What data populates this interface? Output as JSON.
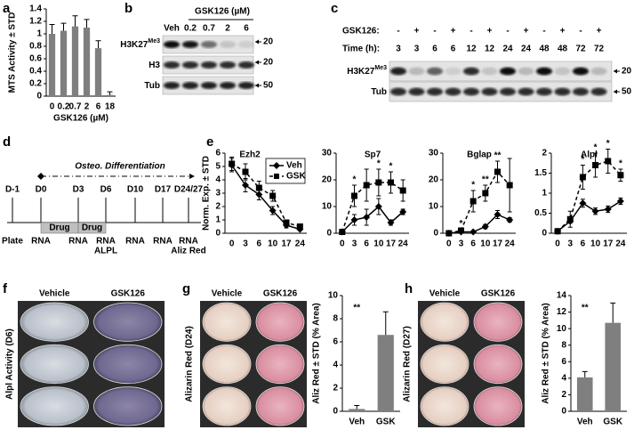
{
  "panel_labels": [
    "a",
    "b",
    "c",
    "d",
    "e",
    "f",
    "g",
    "h"
  ],
  "blot_b": {
    "treatment": "GSK126 (µM)",
    "lanes": [
      "Veh",
      "0.2",
      "0.7",
      "2",
      "6"
    ],
    "rows": [
      {
        "name": "H3K27",
        "sup": "Me3",
        "marker": "20"
      },
      {
        "name": "H3",
        "marker": "20"
      },
      {
        "name": "Tub",
        "marker": "50"
      }
    ]
  },
  "blot_c": {
    "treatment_label": "GSK126:",
    "treatment": [
      "-",
      "+",
      "-",
      "+",
      "-",
      "+",
      "-",
      "+",
      "-",
      "+",
      "-",
      "+"
    ],
    "time_label": "Time (h):",
    "times": [
      "3",
      "3",
      "6",
      "6",
      "12",
      "12",
      "24",
      "24",
      "48",
      "48",
      "72",
      "72"
    ],
    "rows": [
      {
        "name": "H3K27",
        "sup": "Me3",
        "marker": "20"
      },
      {
        "name": "Tub",
        "marker": "50"
      }
    ]
  },
  "timeline_d": {
    "phase": "Osteo. Differentiation",
    "days": [
      "D-1",
      "D0",
      "D3",
      "D6",
      "D10",
      "D17",
      "D24/27"
    ],
    "drug": [
      "Drug",
      "Drug"
    ],
    "events": [
      [
        "Plate"
      ],
      [
        "RNA"
      ],
      [
        "RNA"
      ],
      [
        "RNA",
        "ALPL"
      ],
      [
        "RNA"
      ],
      [
        "RNA"
      ],
      [
        "RNA",
        "Aliz Red"
      ]
    ]
  },
  "plates": [
    {
      "columns": [
        "Vehicle",
        "GSK126"
      ],
      "label": "Alpl Activity (D6)"
    },
    {
      "columns": [
        "Vehicle",
        "GSK126"
      ],
      "label": "Alizarin Red (D24)"
    },
    {
      "columns": [
        "Vehicle",
        "GSK126"
      ],
      "label": "Alizarin Red (D27)"
    }
  ],
  "chart_data": [
    {
      "type": "bar",
      "categories": [
        "0",
        "0.2",
        "0.7",
        "2",
        "6",
        "18"
      ],
      "values": [
        1.0,
        1.05,
        1.12,
        1.1,
        0.77,
        0.02
      ],
      "errors": [
        0.15,
        0.12,
        0.17,
        0.13,
        0.12,
        0.05
      ],
      "color": "#7f7f7f",
      "ylim": [
        0,
        1.4
      ],
      "yticks": [
        0,
        0.2,
        0.4,
        0.6,
        0.8,
        1,
        1.2,
        1.4
      ],
      "ylabel": "MTS Activity ± STD",
      "xlabel": "GSK126 (µM)"
    },
    {
      "type": "line",
      "title": "Ezh2",
      "categories": [
        "0",
        "3",
        "6",
        "10",
        "17",
        "24"
      ],
      "ylim": [
        0,
        6
      ],
      "yticks": [
        0,
        1,
        2,
        3,
        4,
        5,
        6
      ],
      "ylabel": "Norm. Exp. ± STD",
      "legend": "top-right",
      "series": [
        {
          "name": "Veh",
          "marker": "diamond",
          "dash": false,
          "values": [
            5.1,
            3.6,
            2.9,
            1.7,
            0.6,
            0.3
          ],
          "errors": [
            0.5,
            0.5,
            0.4,
            0.3,
            0.2,
            0.1
          ]
        },
        {
          "name": "GSK",
          "marker": "square",
          "dash": true,
          "values": [
            5.2,
            4.6,
            3.4,
            2.8,
            0.8,
            0.5
          ],
          "errors": [
            0.5,
            0.6,
            0.5,
            0.4,
            0.2,
            0.1
          ]
        }
      ]
    },
    {
      "type": "line",
      "title": "Sp7",
      "categories": [
        "0",
        "3",
        "6",
        "10",
        "17",
        "24"
      ],
      "ylim": [
        0,
        30
      ],
      "yticks": [
        0,
        10,
        20,
        30
      ],
      "significance": [
        null,
        "*",
        null,
        "*",
        "*",
        null
      ],
      "series": [
        {
          "marker": "diamond",
          "dash": false,
          "values": [
            0.5,
            5,
            6,
            10,
            4,
            8
          ],
          "errors": [
            0.3,
            2,
            3,
            3,
            1,
            1
          ]
        },
        {
          "marker": "square",
          "dash": true,
          "values": [
            0.5,
            14,
            18,
            19,
            19,
            16
          ],
          "errors": [
            0.3,
            4,
            6,
            5,
            4,
            4
          ]
        }
      ]
    },
    {
      "type": "line",
      "title": "Bglap",
      "categories": [
        "0",
        "3",
        "6",
        "10",
        "17",
        "24"
      ],
      "ylim": [
        0,
        30
      ],
      "yticks": [
        0,
        10,
        20,
        30
      ],
      "significance": [
        null,
        "*",
        "*",
        "**",
        "**",
        null
      ],
      "series": [
        {
          "marker": "diamond",
          "dash": false,
          "values": [
            0,
            0.5,
            0.5,
            2.5,
            7,
            5
          ],
          "errors": [
            0,
            0.3,
            0.3,
            0.8,
            1.5,
            0.8
          ]
        },
        {
          "marker": "square",
          "dash": true,
          "values": [
            0,
            1,
            12,
            15,
            23,
            18
          ],
          "errors": [
            0,
            0.5,
            4,
            3,
            4,
            10
          ]
        }
      ]
    },
    {
      "type": "line",
      "title": "Alpl",
      "categories": [
        "0",
        "3",
        "6",
        "10",
        "17",
        "24"
      ],
      "ylim": [
        0,
        2
      ],
      "yticks": [
        0,
        0.5,
        1,
        1.5,
        2
      ],
      "significance": [
        null,
        null,
        "*",
        "*",
        "*",
        "*"
      ],
      "series": [
        {
          "marker": "diamond",
          "dash": false,
          "values": [
            0.05,
            0.3,
            0.75,
            0.55,
            0.6,
            0.8
          ],
          "errors": [
            0.02,
            0.05,
            0.1,
            0.08,
            0.08,
            0.08
          ]
        },
        {
          "marker": "square",
          "dash": true,
          "values": [
            0.05,
            0.35,
            1.4,
            1.7,
            1.8,
            1.45
          ],
          "errors": [
            0.02,
            0.2,
            0.3,
            0.3,
            0.3,
            0.15
          ]
        }
      ]
    },
    {
      "type": "bar",
      "categories": [
        "Veh",
        "GSK"
      ],
      "values": [
        0.2,
        6.6
      ],
      "errors": [
        0.3,
        2.0
      ],
      "color": "#7f7f7f",
      "ylim": [
        0,
        10
      ],
      "yticks": [
        0,
        2,
        4,
        6,
        8,
        10
      ],
      "ylabel": "Aliz Red ± STD (% Area)",
      "annotation": "**"
    },
    {
      "type": "bar",
      "categories": [
        "Veh",
        "GSK"
      ],
      "values": [
        4.1,
        10.7
      ],
      "errors": [
        0.7,
        2.4
      ],
      "color": "#7f7f7f",
      "ylim": [
        0,
        14
      ],
      "yticks": [
        0,
        2,
        4,
        6,
        8,
        10,
        12,
        14
      ],
      "ylabel": "Aliz Red ± STD (% Area)",
      "annotation": "**"
    }
  ]
}
